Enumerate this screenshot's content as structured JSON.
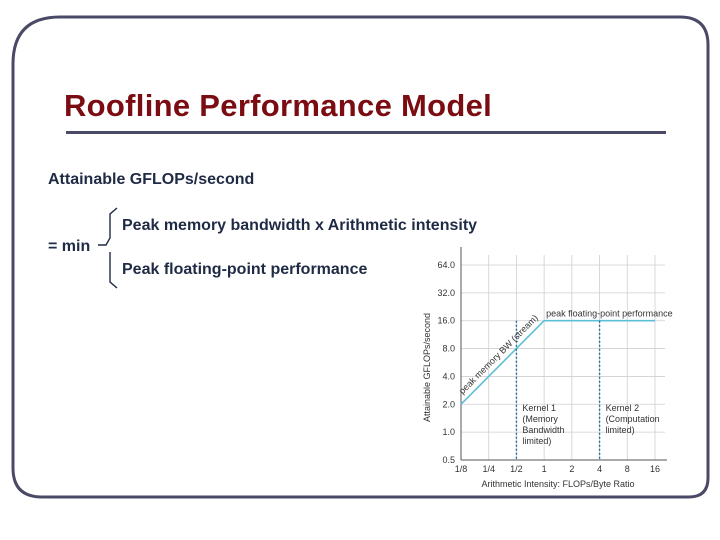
{
  "slide": {
    "title": "Roofline Performance Model",
    "formula": {
      "lhs": "Attainable GFLOPs/second",
      "min_label": "= min",
      "term_1": "Peak memory bandwidth x Arithmetic intensity",
      "term_2": "Peak floating-point performance"
    }
  },
  "colors": {
    "title": "#7a0c12",
    "text": "#1f2a44",
    "frame": "#4a4a66",
    "line": "#5bbfd6",
    "kernel_line": "#1f6f9a",
    "grid": "#cfcfcf"
  },
  "chart_data": {
    "type": "line",
    "title": "",
    "xlabel": "Arithmetic Intensity: FLOPs/Byte Ratio",
    "ylabel": "Attainable GFLOPs/second",
    "x_scale": "log2",
    "y_scale": "log2",
    "xlim": [
      0.125,
      16
    ],
    "ylim": [
      0.5,
      64
    ],
    "x_ticks": [
      {
        "value": 0.125,
        "label": "1/8"
      },
      {
        "value": 0.25,
        "label": "1/4"
      },
      {
        "value": 0.5,
        "label": "1/2"
      },
      {
        "value": 1,
        "label": "1"
      },
      {
        "value": 2,
        "label": "2"
      },
      {
        "value": 4,
        "label": "4"
      },
      {
        "value": 8,
        "label": "8"
      },
      {
        "value": 16,
        "label": "16"
      }
    ],
    "y_ticks": [
      {
        "value": 0.5,
        "label": "0.5"
      },
      {
        "value": 1,
        "label": "1.0"
      },
      {
        "value": 2,
        "label": "2.0"
      },
      {
        "value": 4,
        "label": "4.0"
      },
      {
        "value": 8,
        "label": "8.0"
      },
      {
        "value": 16,
        "label": "16.0"
      },
      {
        "value": 32,
        "label": "32.0"
      },
      {
        "value": 64,
        "label": "64.0"
      }
    ],
    "grid": true,
    "series": [
      {
        "points": [
          {
            "x": 0.125,
            "y": 2
          },
          {
            "x": 1,
            "y": 16
          },
          {
            "x": 16,
            "y": 16
          }
        ]
      }
    ],
    "annotations": [
      {
        "text": "peak memory BW (stream)",
        "segment": "slope"
      },
      {
        "text": "peak floating-point performance",
        "segment": "flat"
      }
    ],
    "markers": [
      {
        "x": 0.5,
        "lines": [
          "Kernel 1",
          "(Memory",
          "Bandwidth",
          "limited)"
        ]
      },
      {
        "x": 4,
        "lines": [
          "Kernel 2",
          "(Computation",
          "limited)"
        ]
      }
    ]
  }
}
